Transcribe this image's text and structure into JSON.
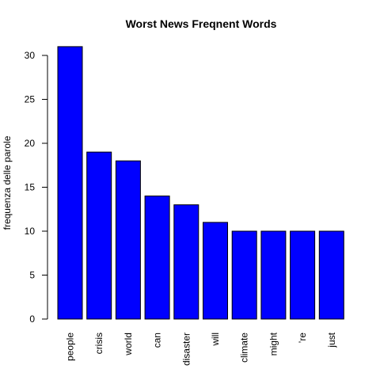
{
  "chart_data": {
    "type": "bar",
    "title": "Worst News Freqnent Words",
    "xlabel": "",
    "ylabel": "frequenza delle parole",
    "categories": [
      "people",
      "crisis",
      "world",
      "can",
      "disaster",
      "will",
      "climate",
      "might",
      "’re",
      "just"
    ],
    "values": [
      31,
      19,
      18,
      14,
      13,
      11,
      10,
      10,
      10,
      10
    ],
    "ylim": [
      0,
      31
    ],
    "yticks": [
      "0",
      "5",
      "10",
      "15",
      "20",
      "25",
      "30"
    ],
    "bar_color": "#0000ff",
    "grid": false,
    "legend": "none"
  }
}
